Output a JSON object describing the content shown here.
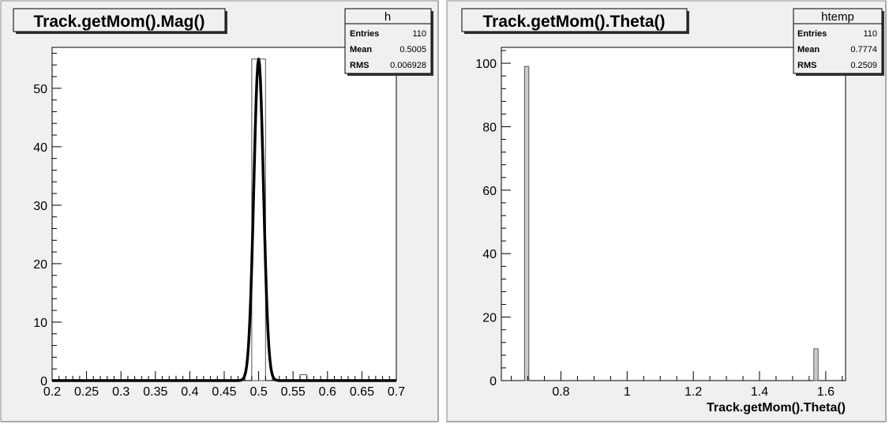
{
  "chart_data": [
    {
      "type": "bar",
      "title": "Track.getMom().Mag()",
      "xlabel": "",
      "ylabel": "",
      "xlim": [
        0.2,
        0.7
      ],
      "ylim": [
        0,
        57
      ],
      "xticks": [
        "0.2",
        "0.25",
        "0.3",
        "0.35",
        "0.4",
        "0.45",
        "0.5",
        "0.55",
        "0.6",
        "0.65",
        "0.7"
      ],
      "yticks": [
        "0",
        "10",
        "20",
        "30",
        "40",
        "50"
      ],
      "stats": {
        "name": "h",
        "rows": [
          {
            "label": "Entries",
            "value": "110"
          },
          {
            "label": "Mean",
            "value": "0.5005"
          },
          {
            "label": "RMS",
            "value": "0.006928"
          }
        ]
      },
      "bars": [
        {
          "x0": 0.49,
          "x1": 0.51,
          "value": 55
        },
        {
          "x0": 0.56,
          "x1": 0.57,
          "value": 1
        }
      ],
      "fit": {
        "type": "gaussian",
        "amplitude": 55,
        "mean": 0.5,
        "sigma": 0.007
      }
    },
    {
      "type": "bar",
      "title": "Track.getMom().Theta()",
      "xlabel": "Track.getMom().Theta()",
      "ylabel": "",
      "xlim": [
        0.62,
        1.66
      ],
      "ylim": [
        0,
        105
      ],
      "xticks": [
        "0.8",
        "1",
        "1.2",
        "1.4",
        "1.6"
      ],
      "yticks": [
        "0",
        "20",
        "40",
        "60",
        "80",
        "100"
      ],
      "stats": {
        "name": "htemp",
        "rows": [
          {
            "label": "Entries",
            "value": "110"
          },
          {
            "label": "Mean",
            "value": "0.7774"
          },
          {
            "label": "RMS",
            "value": "0.2509"
          }
        ]
      },
      "bars": [
        {
          "x0": 0.69,
          "x1": 0.703,
          "value": 99
        },
        {
          "x0": 1.564,
          "x1": 1.577,
          "value": 10
        }
      ]
    }
  ]
}
